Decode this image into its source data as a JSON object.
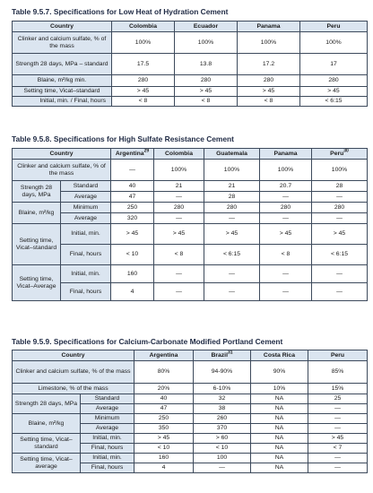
{
  "tables": [
    {
      "caption": "Table 9.5.7. Specifications for Low Heat of Hydration Cement",
      "header": {
        "row_label": "Country",
        "columns": [
          "Colombia",
          "Ecuador",
          "Panama",
          "Peru"
        ]
      },
      "rows": {
        "clinker": {
          "label": "Clinker and calcium sulfate, % of the mass",
          "values": [
            "100%",
            "100%",
            "100%",
            "100%"
          ]
        },
        "strength": {
          "label": "Strength 28 days, MPa – standard",
          "values": [
            "17.5",
            "13.8",
            "17.2",
            "17"
          ]
        },
        "blaine": {
          "label": "Blaine, m²/kg min.",
          "values": [
            "280",
            "280",
            "280",
            "280"
          ]
        },
        "setting": {
          "label": "Setting time, Vicat–standard",
          "initial": {
            "label": "Initial, min.",
            "values": [
              "> 45",
              "> 45",
              "> 45",
              "> 45"
            ]
          },
          "final": {
            "label": "Final, hours",
            "values": [
              "< 8",
              "< 8",
              "< 8",
              "< 6:15"
            ]
          }
        }
      }
    },
    {
      "caption": "Table 9.5.8. Specifications for High Sulfate Resistance Cement",
      "header": {
        "row_label": "Country",
        "columns": [
          "Argentina",
          "Colombia",
          "Guatemala",
          "Panama",
          "Peru"
        ],
        "sups": [
          "29",
          "",
          "",
          "",
          "30"
        ]
      },
      "rows": {
        "clinker": {
          "label": "Clinker and calcium sulfate, % of the mass",
          "values": [
            "—",
            "100%",
            "100%",
            "100%",
            "100%"
          ]
        },
        "strength": {
          "label": "Strength 28 days, MPa",
          "standard": {
            "label": "Standard",
            "values": [
              "40",
              "21",
              "21",
              "20.7",
              "28"
            ]
          },
          "average": {
            "label": "Average",
            "values": [
              "47",
              "—",
              "28",
              "—",
              "—"
            ]
          }
        },
        "blaine": {
          "label": "Blaine, m²/kg",
          "minimum": {
            "label": "Minimum",
            "values": [
              "250",
              "280",
              "280",
              "280",
              "280"
            ]
          },
          "average": {
            "label": "Average",
            "values": [
              "320",
              "—",
              "—",
              "—",
              "—"
            ]
          }
        },
        "setting_std": {
          "label": "Setting time, Vicat–standard",
          "initial": {
            "label": "Initial, min.",
            "values": [
              "> 45",
              "> 45",
              "> 45",
              "> 45",
              "> 45"
            ]
          },
          "final": {
            "label": "Final, hours",
            "values": [
              "< 10",
              "< 8",
              "< 6:15",
              "< 8",
              "< 6:15"
            ]
          }
        },
        "setting_avg": {
          "label": "Setting time, Vicat–Average",
          "initial": {
            "label": "Initial, min.",
            "values": [
              "160",
              "—",
              "—",
              "—",
              "—"
            ]
          },
          "final": {
            "label": "Final, hours",
            "values": [
              "4",
              "—",
              "—",
              "—",
              "—"
            ]
          }
        }
      }
    },
    {
      "caption": "Table 9.5.9. Specifications for Calcium-Carbonate Modified Portland Cement",
      "header": {
        "row_label": "Country",
        "columns": [
          "Argentina",
          "Brazil",
          "Costa Rica",
          "Peru"
        ],
        "sups": [
          "",
          "31",
          "",
          ""
        ]
      },
      "rows": {
        "clinker": {
          "label": "Clinker and calcium sulfate, % of the mass",
          "values": [
            "80%",
            "94-90%",
            "90%",
            "85%"
          ]
        },
        "limestone": {
          "label": "Limestone, % of the mass",
          "values": [
            "20%",
            "6-10%",
            "10%",
            "15%"
          ]
        },
        "strength": {
          "label": "Strength 28 days, MPa",
          "standard": {
            "label": "Standard",
            "values": [
              "40",
              "32",
              "NA",
              "25"
            ]
          },
          "average": {
            "label": "Average",
            "values": [
              "47",
              "38",
              "NA",
              "—"
            ]
          }
        },
        "blaine": {
          "label": "Blaine, m²/kg",
          "minimum": {
            "label": "Minimum",
            "values": [
              "250",
              "260",
              "NA",
              "—"
            ]
          },
          "average": {
            "label": "Average",
            "values": [
              "350",
              "370",
              "NA",
              "—"
            ]
          }
        },
        "setting_std": {
          "label": "Setting time, Vicat–standard",
          "initial": {
            "label": "Initial, min.",
            "values": [
              "> 45",
              "> 60",
              "NA",
              "> 45"
            ]
          },
          "final": {
            "label": "Final, hours",
            "values": [
              "< 10",
              "< 10",
              "NA",
              "< 7"
            ]
          }
        },
        "setting_avg": {
          "label": "Setting time, Vicat–average",
          "initial": {
            "label": "Initial, min.",
            "values": [
              "160",
              "100",
              "NA",
              "—"
            ]
          },
          "final": {
            "label": "Final, hours",
            "values": [
              "4",
              "—",
              "NA",
              "—"
            ]
          }
        }
      }
    }
  ]
}
